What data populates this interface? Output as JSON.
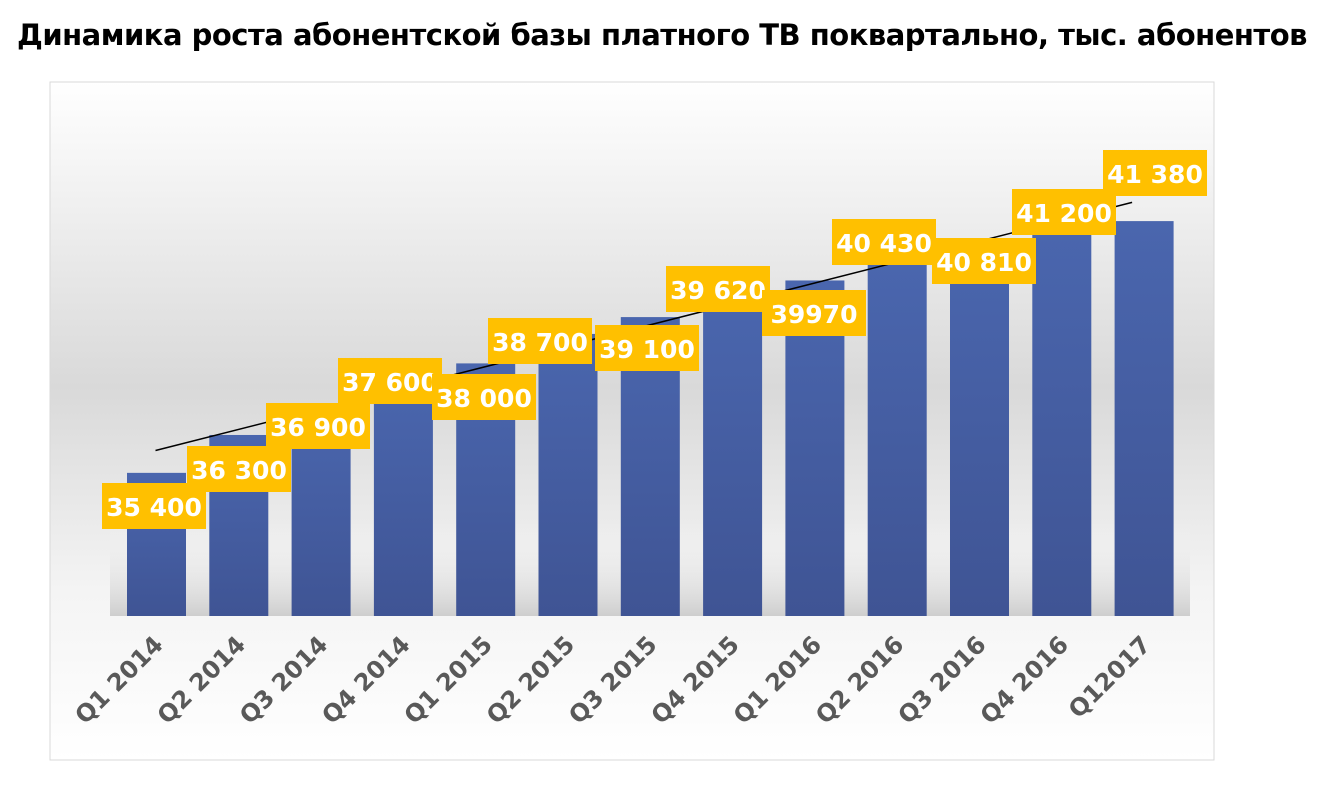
{
  "chart_data": {
    "type": "bar",
    "title": "Динамика роста абонентской базы платного ТВ поквартально, тыс. абонентов",
    "categories": [
      "Q1 2014",
      "Q2 2014",
      "Q3 2014",
      "Q4 2014",
      "Q1 2015",
      "Q2 2015",
      "Q3 2015",
      "Q4 2015",
      "Q1 2016",
      "Q2 2016",
      "Q3 2016",
      "Q4 2016",
      "Q12017"
    ],
    "values": [
      35400,
      36300,
      36900,
      37600,
      38000,
      38700,
      39100,
      39620,
      39970,
      40430,
      40810,
      41200,
      41380
    ],
    "data_labels": [
      "35 400",
      "36 300",
      "36 900",
      "37 600",
      "38 000",
      "38 700",
      "39 100",
      "39 620",
      "39970",
      "40 430",
      "40 810",
      "41 200",
      "41 380"
    ],
    "xlabel": "",
    "ylabel": "",
    "ylim": [
      32000,
      42000
    ],
    "grid": false,
    "trendline": "linear",
    "colors": {
      "bar": "#4763AA",
      "label_bg": "#FFC000",
      "label_text": "#FFFFFF",
      "tick_text": "#595959",
      "trendline": "#000000"
    }
  }
}
